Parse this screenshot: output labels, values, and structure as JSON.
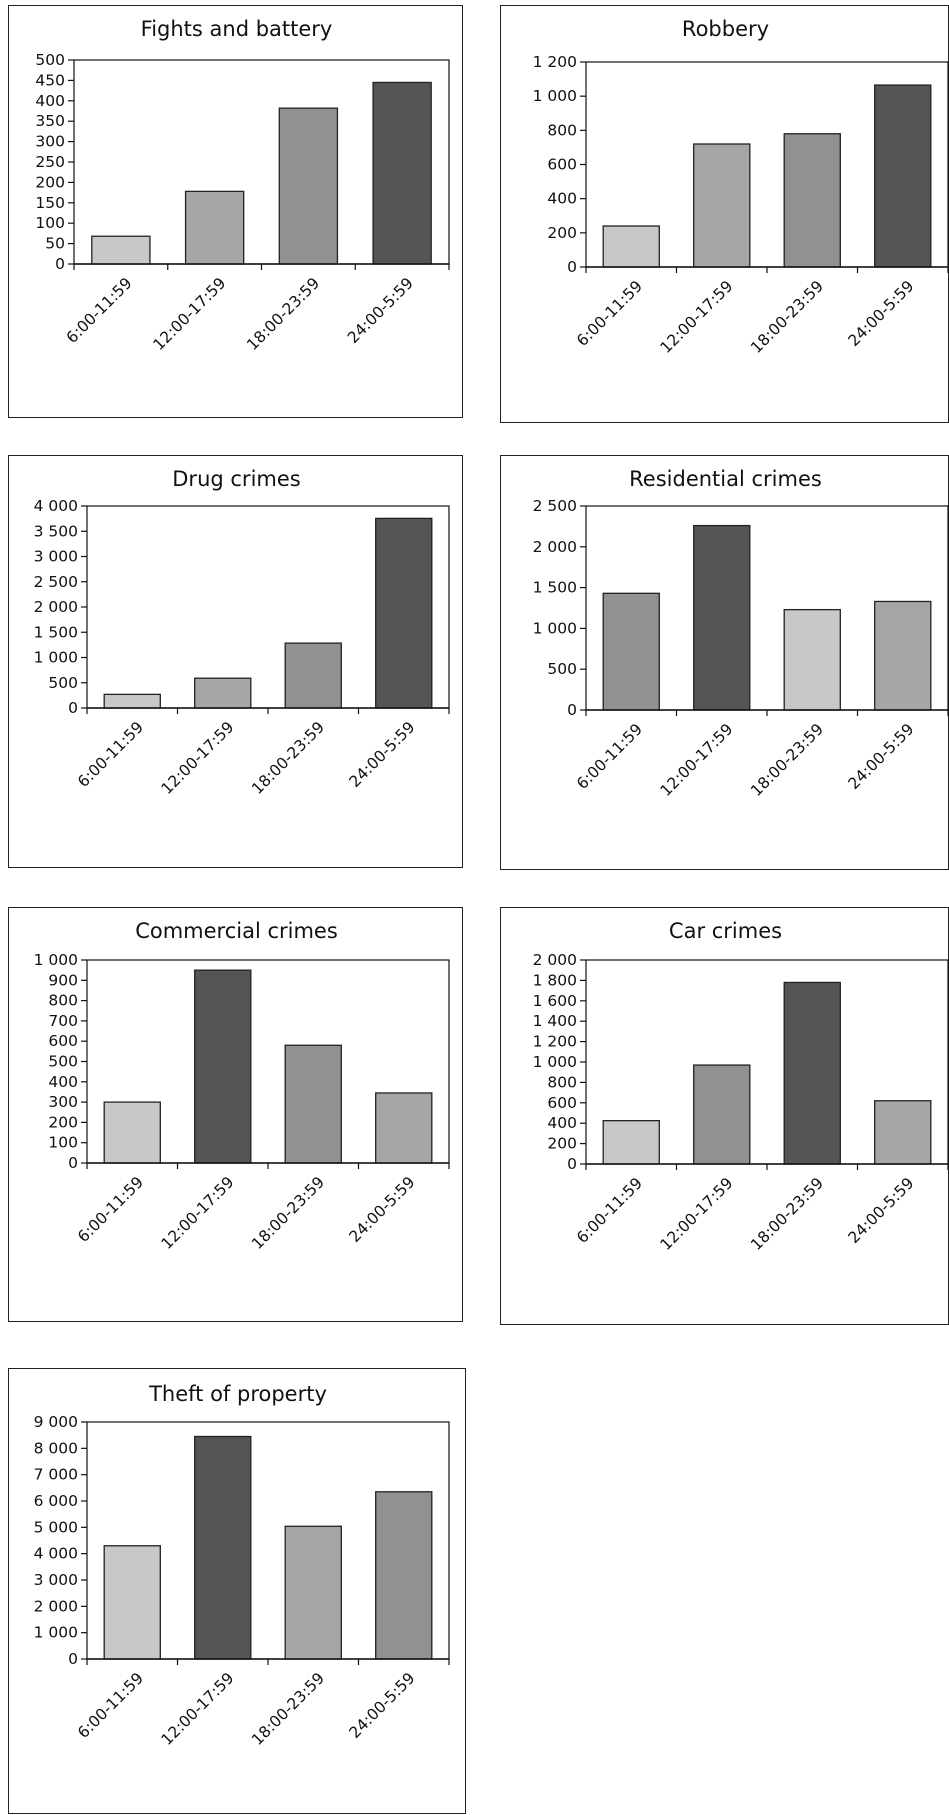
{
  "colors": {
    "light": "#c8c8ca",
    "mid": "#a6a6a9",
    "midDark": "#919194",
    "dark": "#555557",
    "outline": "#222222"
  },
  "chart_data": [
    {
      "type": "bar",
      "title": "Fights and battery",
      "categories": [
        "6:00-11:59",
        "12:00-17:59",
        "18:00-23:59",
        "24:00-5:59"
      ],
      "values": [
        68,
        178,
        382,
        445
      ],
      "bar_colors": [
        "light",
        "mid",
        "midDark",
        "dark"
      ],
      "ylim": [
        0,
        500
      ],
      "yticks": [
        0,
        50,
        100,
        150,
        200,
        250,
        300,
        350,
        400,
        450,
        500
      ],
      "ytick_labels": [
        "0",
        "50",
        "100",
        "150",
        "200",
        "250",
        "300",
        "350",
        "400",
        "450",
        "500"
      ]
    },
    {
      "type": "bar",
      "title": "Robbery",
      "categories": [
        "6:00-11:59",
        "12:00-17:59",
        "18:00-23:59",
        "24:00-5:59"
      ],
      "values": [
        240,
        720,
        780,
        1065
      ],
      "bar_colors": [
        "light",
        "mid",
        "midDark",
        "dark"
      ],
      "ylim": [
        0,
        1200
      ],
      "yticks": [
        0,
        200,
        400,
        600,
        800,
        1000,
        1200
      ],
      "ytick_labels": [
        "0",
        "200",
        "400",
        "600",
        "800",
        "1 000",
        "1 200"
      ]
    },
    {
      "type": "bar",
      "title": "Drug crimes",
      "categories": [
        "6:00-11:59",
        "12:00-17:59",
        "18:00-23:59",
        "24:00-5:59"
      ],
      "values": [
        270,
        590,
        1285,
        3755
      ],
      "bar_colors": [
        "light",
        "mid",
        "midDark",
        "dark"
      ],
      "ylim": [
        0,
        4000
      ],
      "yticks": [
        0,
        500,
        1000,
        1500,
        2000,
        2500,
        3000,
        3500,
        4000
      ],
      "ytick_labels": [
        "0",
        "500",
        "1 000",
        "1 500",
        "2 000",
        "2 500",
        "3 000",
        "3 500",
        "4 000"
      ]
    },
    {
      "type": "bar",
      "title": "Residential crimes",
      "categories": [
        "6:00-11:59",
        "12:00-17:59",
        "18:00-23:59",
        "24:00-5:59"
      ],
      "values": [
        1430,
        2260,
        1230,
        1330
      ],
      "bar_colors": [
        "midDark",
        "dark",
        "light",
        "mid"
      ],
      "ylim": [
        0,
        2500
      ],
      "yticks": [
        0,
        500,
        1000,
        1500,
        2000,
        2500
      ],
      "ytick_labels": [
        "0",
        "500",
        "1 000",
        "1 500",
        "2 000",
        "2 500"
      ]
    },
    {
      "type": "bar",
      "title": "Commercial crimes",
      "categories": [
        "6:00-11:59",
        "12:00-17:59",
        "18:00-23:59",
        "24:00-5:59"
      ],
      "values": [
        300,
        950,
        580,
        345
      ],
      "bar_colors": [
        "light",
        "dark",
        "midDark",
        "mid"
      ],
      "ylim": [
        0,
        1000
      ],
      "yticks": [
        0,
        100,
        200,
        300,
        400,
        500,
        600,
        700,
        800,
        900,
        1000
      ],
      "ytick_labels": [
        "0",
        "100",
        "200",
        "300",
        "400",
        "500",
        "600",
        "700",
        "800",
        "900",
        "1 000"
      ]
    },
    {
      "type": "bar",
      "title": "Car crimes",
      "categories": [
        "6:00-11:59",
        "12:00-17:59",
        "18:00-23:59",
        "24:00-5:59"
      ],
      "values": [
        425,
        970,
        1780,
        620
      ],
      "bar_colors": [
        "light",
        "midDark",
        "dark",
        "mid"
      ],
      "ylim": [
        0,
        2000
      ],
      "yticks": [
        0,
        200,
        400,
        600,
        800,
        1000,
        1200,
        1400,
        1600,
        1800,
        2000
      ],
      "ytick_labels": [
        "0",
        "200",
        "400",
        "600",
        "800",
        "1 000",
        "1 200",
        "1 400",
        "1 600",
        "1 800",
        "2 000"
      ]
    },
    {
      "type": "bar",
      "title": "Theft of property",
      "categories": [
        "6:00-11:59",
        "12:00-17:59",
        "18:00-23:59",
        "24:00-5:59"
      ],
      "values": [
        4300,
        8450,
        5040,
        6350
      ],
      "bar_colors": [
        "light",
        "dark",
        "mid",
        "midDark"
      ],
      "ylim": [
        0,
        9000
      ],
      "yticks": [
        0,
        1000,
        2000,
        3000,
        4000,
        5000,
        6000,
        7000,
        8000,
        9000
      ],
      "ytick_labels": [
        "0",
        "1 000",
        "2 000",
        "3 000",
        "4 000",
        "5 000",
        "6 000",
        "7 000",
        "8 000",
        "9 000"
      ]
    }
  ]
}
